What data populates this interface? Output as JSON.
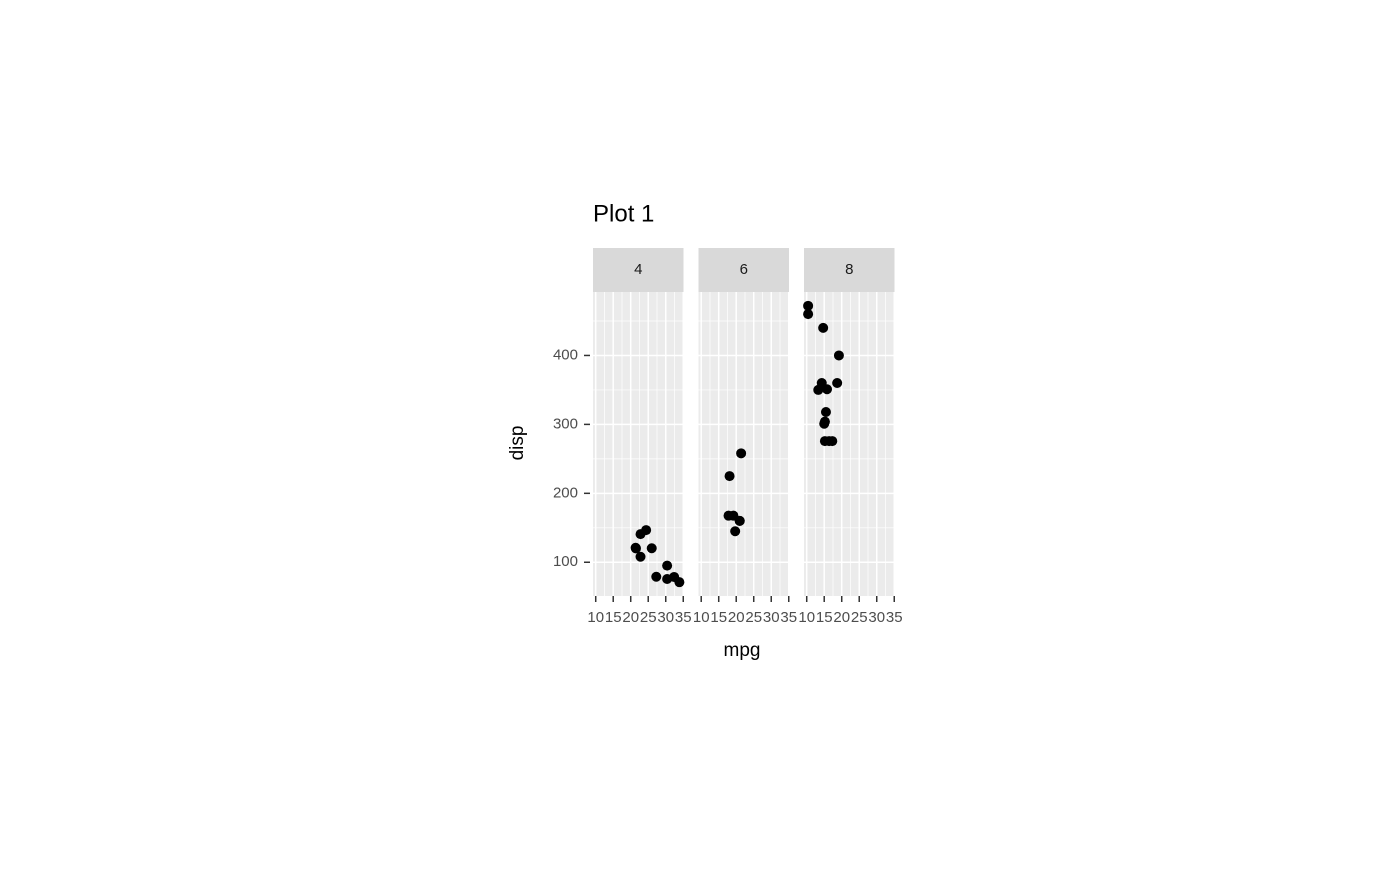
{
  "chart_data": {
    "type": "scatter",
    "title": "Plot 1",
    "xlabel": "mpg",
    "ylabel": "disp",
    "color": "#000000",
    "xlim": [
      9.225,
      35.075
    ],
    "ylim": [
      51.055,
      492.045
    ],
    "xticks": [
      10,
      15,
      20,
      25,
      30,
      35
    ],
    "yticks": [
      100,
      200,
      300,
      400
    ],
    "grid": true,
    "facets": [
      {
        "name": "4",
        "x": [
          22.8,
          24.4,
          22.8,
          32.4,
          30.4,
          33.9,
          21.5,
          27.3,
          26,
          30.4,
          21.4
        ],
        "y": [
          108,
          146.7,
          140.8,
          78.7,
          75.7,
          71.1,
          120.1,
          79,
          120.3,
          95.1,
          121
        ]
      },
      {
        "name": "6",
        "x": [
          21,
          21,
          21.4,
          18.1,
          19.2,
          17.8,
          19.7
        ],
        "y": [
          160,
          160,
          258,
          225,
          167.6,
          167.6,
          145
        ]
      },
      {
        "name": "8",
        "x": [
          18.7,
          14.3,
          16.4,
          17.3,
          15.2,
          10.4,
          10.4,
          14.7,
          15.5,
          15.2,
          13.3,
          19.2,
          15.8,
          15
        ],
        "y": [
          360,
          360,
          275.8,
          275.8,
          275.8,
          472,
          460,
          440,
          318,
          304,
          350,
          400,
          351,
          301
        ]
      }
    ]
  }
}
